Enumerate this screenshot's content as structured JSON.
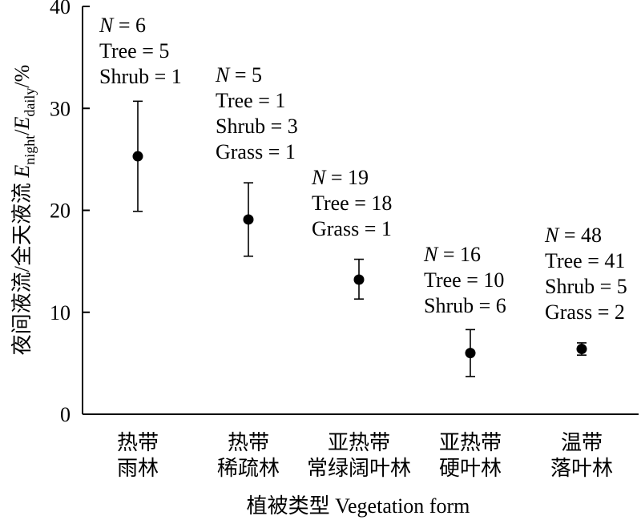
{
  "chart_data": {
    "type": "scatter",
    "error_bars": true,
    "categories": [
      [
        "热带",
        "雨林"
      ],
      [
        "热带",
        "稀疏林"
      ],
      [
        "亚热带",
        "常绿阔叶林"
      ],
      [
        "亚热带",
        "硬叶林"
      ],
      [
        "温带",
        "落叶林"
      ]
    ],
    "means": [
      25.3,
      19.1,
      13.2,
      6.0,
      6.4
    ],
    "error_low": [
      19.9,
      15.5,
      11.3,
      3.7,
      5.8
    ],
    "error_high": [
      30.7,
      22.7,
      15.2,
      8.3,
      7.0
    ],
    "ylim": [
      0,
      40
    ],
    "yticks": [
      0,
      10,
      20,
      30,
      40
    ],
    "xlabel": "植被类型 Vegetation form",
    "ylabel": "夜间液流/全天液流 Enight/Edaily/%",
    "ylabel_parts": {
      "prefix": "夜间液流/全天液流 ",
      "num_var": "E",
      "num_sub": "night",
      "slash": "/",
      "den_var": "E",
      "den_sub": "daily",
      "suffix": "/%"
    },
    "annotations": [
      {
        "n": "6",
        "lines": [
          "Tree = 5",
          "Shrub = 1"
        ]
      },
      {
        "n": "5",
        "lines": [
          "Tree = 1",
          "Shrub = 3",
          "Grass = 1"
        ]
      },
      {
        "n": "19",
        "lines": [
          "Tree = 18",
          "Grass = 1"
        ]
      },
      {
        "n": "16",
        "lines": [
          "Tree = 10",
          "Shrub = 6"
        ]
      },
      {
        "n": "48",
        "lines": [
          "Tree = 41",
          "Shrub = 5",
          "Grass = 2"
        ]
      }
    ],
    "n_symbol": "N",
    "n_eq": " = ",
    "colors": {
      "marker": "#000000",
      "axis": "#000000"
    }
  }
}
